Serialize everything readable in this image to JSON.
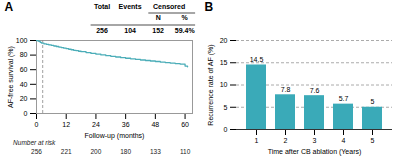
{
  "chart_data": [
    {
      "type": "step",
      "title": "A",
      "xlabel": "Follow-up (months)",
      "ylabel": "AF-free survival (%)",
      "x": [
        0,
        0.5,
        1,
        1.5,
        2,
        3,
        4,
        5,
        6,
        7,
        8,
        9,
        10,
        11,
        12,
        13,
        14,
        15,
        16,
        17,
        18,
        20,
        22,
        24,
        26,
        28,
        30,
        32,
        34,
        36,
        38,
        40,
        42,
        44,
        46,
        48,
        50,
        52,
        54,
        56,
        58,
        60,
        61
      ],
      "values": [
        100,
        99.5,
        98.8,
        97.5,
        96.5,
        95.5,
        94.8,
        94.0,
        93.2,
        92.5,
        91.8,
        91.0,
        90.3,
        89.5,
        88.8,
        88.0,
        87.3,
        86.6,
        86.0,
        85.3,
        84.7,
        83.5,
        82.3,
        81.2,
        80.2,
        79.2,
        78.3,
        77.4,
        76.5,
        75.7,
        74.9,
        74.1,
        73.3,
        72.6,
        71.9,
        71.2,
        70.5,
        69.8,
        69.1,
        68.4,
        67.7,
        65.0,
        64.0
      ],
      "color": "#4BADB8",
      "xlim": [
        0,
        63
      ],
      "ylim": [
        0,
        100
      ],
      "xticks": [
        0,
        12,
        24,
        36,
        48,
        60
      ],
      "yticks": [
        0,
        20,
        40,
        60,
        80,
        100
      ],
      "vlines": [
        2.5
      ],
      "table": {
        "columns": [
          "Total",
          "Events",
          "Censored"
        ],
        "subcolumns": [
          "N",
          "%"
        ],
        "row": [
          256,
          104,
          152,
          {
            "value": 59.4,
            "label": "59.4%"
          }
        ]
      },
      "at_risk": {
        "label": "Number at risk",
        "x": [
          0,
          12,
          24,
          36,
          48,
          60
        ],
        "values": [
          256,
          221,
          200,
          180,
          133,
          110
        ]
      }
    },
    {
      "type": "bar",
      "title": "B",
      "xlabel": "Time after CB ablation (Years)",
      "ylabel": "Recurrence rate of AF (%)",
      "categories": [
        "1",
        "2",
        "3",
        "4",
        "5"
      ],
      "values": [
        14.5,
        7.8,
        7.6,
        5.7,
        5.0
      ],
      "color": "#3AAAB8",
      "ylim": [
        0,
        20
      ],
      "yticks": [
        0,
        5,
        10,
        15,
        20
      ],
      "grid": true,
      "data_labels": true
    }
  ]
}
